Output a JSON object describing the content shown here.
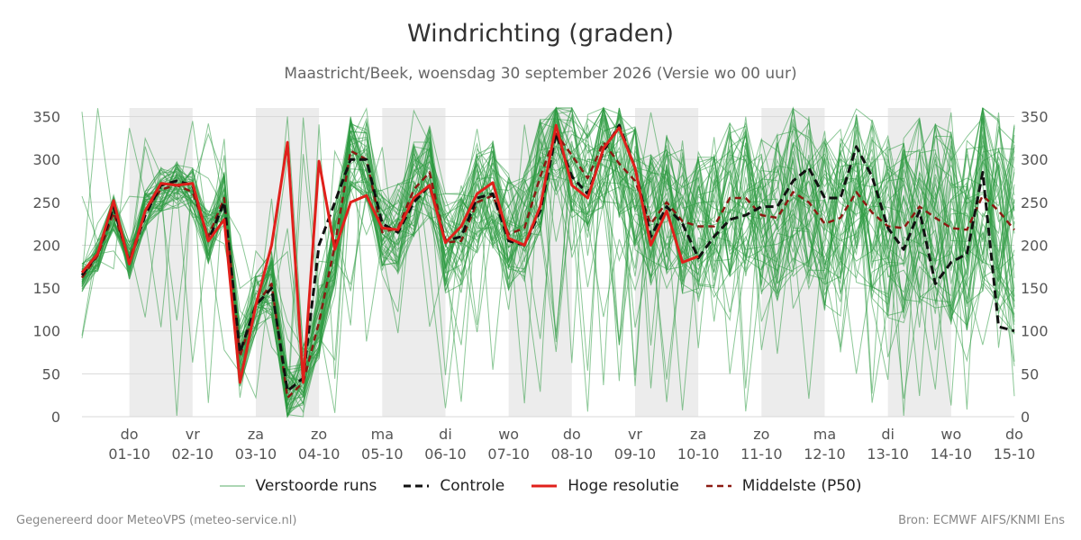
{
  "header": {
    "title": "Windrichting (graden)",
    "subtitle": "Maastricht/Beek, woensdag 30 september 2026 (Versie wo 00 uur)"
  },
  "footer": {
    "left": "Gegenereerd door MeteoVPS (meteo-service.nl)",
    "right": "Bron: ECMWF AIFS/KNMI Ens"
  },
  "legend": {
    "ensemble": "Verstoorde runs",
    "control": "Controle",
    "hires": "Hoge resolutie",
    "median": "Middelste (P50)"
  },
  "colors": {
    "ensemble": "#2e9a41",
    "control": "#111111",
    "hires": "#e0201b",
    "median": "#8b1a12",
    "weekend_band": "#ececec",
    "grid": "#d9d9d9"
  },
  "chart_data": {
    "type": "line",
    "title": "Windrichting (graden)",
    "x_unit": "days since 30-09 00 uur",
    "xlim": [
      0.25,
      15
    ],
    "ylim": [
      0,
      360
    ],
    "yticks": [
      0,
      50,
      100,
      150,
      200,
      250,
      300,
      350
    ],
    "grid": true,
    "legend_position": "bottom",
    "day_ticks": [
      {
        "x": 1,
        "day": "do",
        "date": "01-10"
      },
      {
        "x": 2,
        "day": "vr",
        "date": "02-10"
      },
      {
        "x": 3,
        "day": "za",
        "date": "03-10"
      },
      {
        "x": 4,
        "day": "zo",
        "date": "04-10"
      },
      {
        "x": 5,
        "day": "ma",
        "date": "05-10"
      },
      {
        "x": 6,
        "day": "di",
        "date": "06-10"
      },
      {
        "x": 7,
        "day": "wo",
        "date": "07-10"
      },
      {
        "x": 8,
        "day": "do",
        "date": "08-10"
      },
      {
        "x": 9,
        "day": "vr",
        "date": "09-10"
      },
      {
        "x": 10,
        "day": "za",
        "date": "10-10"
      },
      {
        "x": 11,
        "day": "zo",
        "date": "11-10"
      },
      {
        "x": 12,
        "day": "ma",
        "date": "12-10"
      },
      {
        "x": 13,
        "day": "di",
        "date": "13-10"
      },
      {
        "x": 14,
        "day": "wo",
        "date": "14-10"
      },
      {
        "x": 15,
        "day": "do",
        "date": "15-10"
      }
    ],
    "shaded_days": [
      [
        1,
        2
      ],
      [
        3,
        4
      ],
      [
        5,
        6
      ],
      [
        7,
        8
      ],
      [
        9,
        10
      ],
      [
        11,
        12
      ],
      [
        13,
        14
      ]
    ],
    "series": [
      {
        "name": "Controle",
        "x": [
          0.25,
          0.5,
          0.75,
          1.0,
          1.25,
          1.5,
          1.75,
          2.0,
          2.25,
          2.5,
          2.75,
          3.0,
          3.25,
          3.5,
          3.75,
          4.0,
          4.25,
          4.5,
          4.75,
          5.0,
          5.25,
          5.5,
          5.75,
          6.0,
          6.25,
          6.5,
          6.75,
          7.0,
          7.25,
          7.5,
          7.75,
          8.0,
          8.25,
          8.5,
          8.75,
          9.0,
          9.25,
          9.5,
          9.75,
          10.0,
          10.25,
          10.5,
          10.75,
          11.0,
          11.25,
          11.5,
          11.75,
          12.0,
          12.25,
          12.5,
          12.75,
          13.0,
          13.25,
          13.5,
          13.75,
          14.0,
          14.25,
          14.5,
          14.75,
          15.0
        ],
        "values": [
          165,
          190,
          245,
          180,
          235,
          270,
          275,
          270,
          205,
          250,
          75,
          130,
          150,
          30,
          45,
          200,
          250,
          300,
          300,
          225,
          215,
          250,
          270,
          205,
          210,
          255,
          260,
          205,
          200,
          240,
          330,
          280,
          260,
          310,
          340,
          290,
          210,
          245,
          225,
          185,
          210,
          230,
          235,
          245,
          245,
          275,
          290,
          255,
          255,
          315,
          280,
          220,
          195,
          240,
          155,
          180,
          190,
          285,
          105,
          100
        ]
      },
      {
        "name": "Hoge resolutie",
        "x": [
          0.25,
          0.5,
          0.75,
          1.0,
          1.25,
          1.5,
          1.75,
          2.0,
          2.25,
          2.5,
          2.75,
          3.0,
          3.25,
          3.5,
          3.75,
          4.0,
          4.25,
          4.5,
          4.75,
          5.0,
          5.25,
          5.5,
          5.75,
          6.0,
          6.25,
          6.5,
          6.75,
          7.0,
          7.25,
          7.5,
          7.75,
          8.0,
          8.25,
          8.5,
          8.75,
          9.0,
          9.25,
          9.5,
          9.75,
          10.0
        ],
        "values": [
          168,
          190,
          252,
          178,
          240,
          272,
          270,
          272,
          205,
          230,
          40,
          130,
          200,
          320,
          40,
          298,
          195,
          250,
          258,
          220,
          218,
          255,
          270,
          203,
          222,
          260,
          273,
          208,
          200,
          245,
          340,
          270,
          255,
          313,
          337,
          290,
          200,
          240,
          180,
          187
        ]
      },
      {
        "name": "Middelste (P50)",
        "x": [
          0.25,
          0.5,
          0.75,
          1.0,
          1.25,
          1.5,
          1.75,
          2.0,
          2.25,
          2.5,
          2.75,
          3.0,
          3.25,
          3.5,
          3.75,
          4.0,
          4.25,
          4.5,
          4.75,
          5.0,
          5.25,
          5.5,
          5.75,
          6.0,
          6.25,
          6.5,
          6.75,
          7.0,
          7.25,
          7.5,
          7.75,
          8.0,
          8.25,
          8.5,
          8.75,
          9.0,
          9.25,
          9.5,
          9.75,
          10.0,
          10.25,
          10.5,
          10.75,
          11.0,
          11.25,
          11.5,
          11.75,
          12.0,
          12.25,
          12.5,
          12.75,
          13.0,
          13.25,
          13.5,
          13.75,
          14.0,
          14.25,
          14.5,
          14.75,
          15.0
        ],
        "values": [
          162,
          188,
          238,
          182,
          240,
          265,
          270,
          262,
          210,
          255,
          70,
          130,
          155,
          22,
          40,
          110,
          200,
          310,
          300,
          215,
          220,
          265,
          285,
          203,
          205,
          250,
          258,
          213,
          220,
          280,
          330,
          305,
          278,
          320,
          295,
          275,
          225,
          250,
          228,
          222,
          222,
          255,
          255,
          235,
          232,
          262,
          250,
          225,
          232,
          262,
          238,
          222,
          220,
          245,
          232,
          220,
          218,
          258,
          240,
          218
        ]
      }
    ]
  }
}
